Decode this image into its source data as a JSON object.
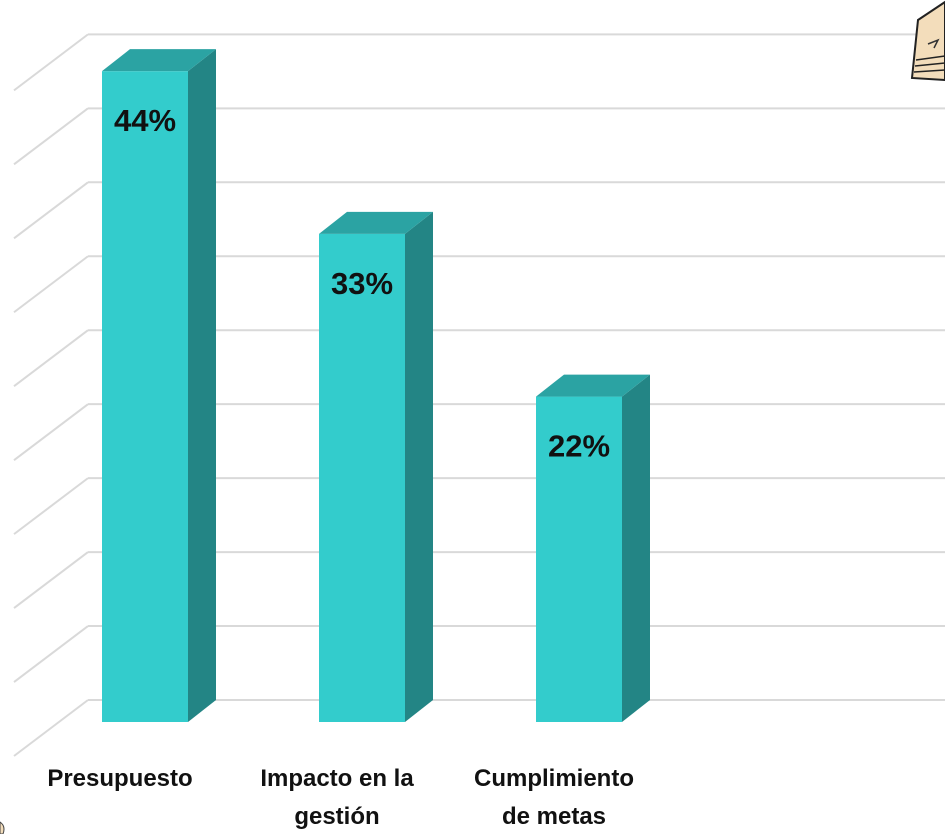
{
  "chart_data": {
    "type": "bar",
    "style": "3d-column",
    "categories": [
      "Presupuesto",
      "Impacto en la gestión",
      "Cumplimiento de metas"
    ],
    "category_lines": [
      [
        "Presupuesto"
      ],
      [
        "Impacto en la",
        "gestión"
      ],
      [
        "Cumplimiento",
        "de metas"
      ]
    ],
    "values": [
      44,
      33,
      22
    ],
    "data_labels": [
      "44%",
      "33%",
      "22%"
    ],
    "unit": "%",
    "ylim": [
      0,
      48
    ],
    "gridline_step": 5,
    "grid": true,
    "legend": "none",
    "title": "",
    "xlabel": "",
    "ylabel": ""
  },
  "colors": {
    "bar_front": "#33CCCC",
    "bar_top": "#2BA3A3",
    "bar_side": "#238585",
    "gridline": "#D9D9D9",
    "text": "#111111"
  },
  "decorations": {
    "corner_icon": "paper-stack-clipart-icon"
  }
}
